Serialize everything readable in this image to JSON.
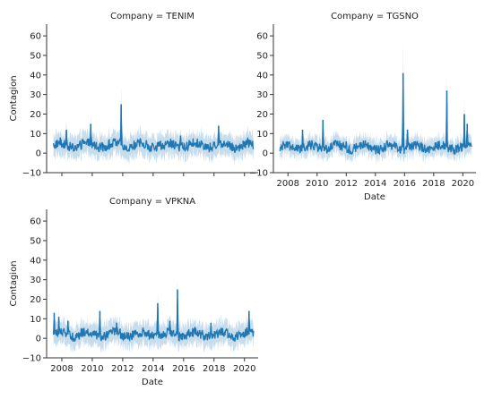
{
  "chart_data": [
    {
      "type": "line",
      "title": "Company = TENIM",
      "xlabel": "",
      "ylabel": "Contagion",
      "xlim": [
        2007.0,
        2020.9
      ],
      "ylim": [
        -10,
        66
      ],
      "yticks": [
        -10,
        0,
        10,
        20,
        30,
        40,
        50,
        60
      ],
      "xticks": [],
      "band_color": "#1f77b4",
      "line_color": "#1f77b4",
      "baseline": 4,
      "band_halfwidth": 4,
      "spikes": [
        {
          "x": 2007.9,
          "y": 8,
          "upper": 14
        },
        {
          "x": 2008.3,
          "y": 12,
          "upper": 19
        },
        {
          "x": 2009.9,
          "y": 15,
          "upper": 23
        },
        {
          "x": 2011.9,
          "y": 25,
          "upper": 37
        },
        {
          "x": 2015.8,
          "y": 9,
          "upper": 15
        },
        {
          "x": 2018.3,
          "y": 14,
          "upper": 21
        }
      ]
    },
    {
      "type": "line",
      "title": "Company = TGSNO",
      "xlabel": "Date",
      "ylabel": "",
      "xlim": [
        2007.0,
        2020.9
      ],
      "ylim": [
        -10,
        66
      ],
      "yticks": [
        -10,
        0,
        10,
        20,
        30,
        40,
        50,
        60
      ],
      "xticks": [
        "2008",
        "2010",
        "2012",
        "2014",
        "2016",
        "2018",
        "2020"
      ],
      "band_color": "#1f77b4",
      "line_color": "#1f77b4",
      "baseline": 3,
      "band_halfwidth": 3,
      "spikes": [
        {
          "x": 2009.0,
          "y": 12,
          "upper": 16
        },
        {
          "x": 2010.4,
          "y": 17,
          "upper": 22
        },
        {
          "x": 2012.0,
          "y": 6,
          "upper": 10
        },
        {
          "x": 2015.9,
          "y": 41,
          "upper": 62
        },
        {
          "x": 2016.2,
          "y": 12,
          "upper": 18
        },
        {
          "x": 2018.9,
          "y": 32,
          "upper": 48
        },
        {
          "x": 2020.1,
          "y": 20,
          "upper": 30
        },
        {
          "x": 2020.3,
          "y": 15,
          "upper": 22
        }
      ]
    },
    {
      "type": "line",
      "title": "Company = VPKNA",
      "xlabel": "Date",
      "ylabel": "Contagion",
      "xlim": [
        2007.0,
        2020.9
      ],
      "ylim": [
        -10,
        66
      ],
      "yticks": [
        -10,
        0,
        10,
        20,
        30,
        40,
        50,
        60
      ],
      "xticks": [
        "2008",
        "2010",
        "2012",
        "2014",
        "2016",
        "2018",
        "2020"
      ],
      "band_color": "#1f77b4",
      "line_color": "#1f77b4",
      "baseline": 2,
      "band_halfwidth": 4,
      "spikes": [
        {
          "x": 2007.5,
          "y": 13,
          "upper": 20
        },
        {
          "x": 2007.8,
          "y": 11,
          "upper": 17
        },
        {
          "x": 2008.4,
          "y": 9,
          "upper": 14
        },
        {
          "x": 2010.5,
          "y": 14,
          "upper": 21
        },
        {
          "x": 2011.6,
          "y": 8,
          "upper": 13
        },
        {
          "x": 2014.3,
          "y": 18,
          "upper": 27
        },
        {
          "x": 2015.1,
          "y": 9,
          "upper": 14
        },
        {
          "x": 2015.6,
          "y": 25,
          "upper": 38
        },
        {
          "x": 2017.8,
          "y": 8,
          "upper": 13
        },
        {
          "x": 2020.3,
          "y": 14,
          "upper": 20
        }
      ]
    }
  ]
}
